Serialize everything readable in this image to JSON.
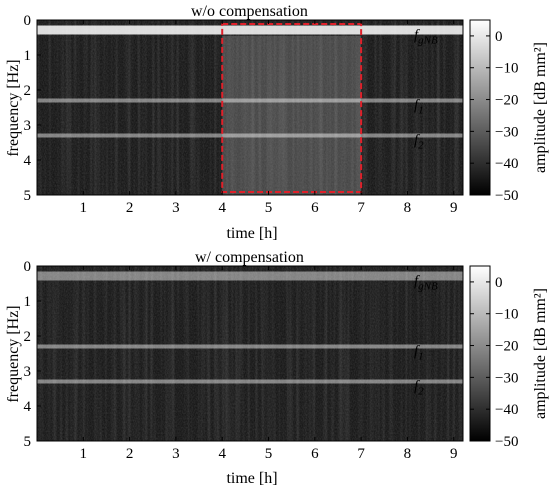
{
  "chart_data": [
    {
      "type": "heatmap",
      "title": "w/o compensation",
      "xlabel": "time [h]",
      "ylabel": "frequency [Hz]",
      "xlim": [
        0,
        9.2
      ],
      "ylim": [
        0,
        5
      ],
      "y_direction": "down",
      "x_ticks": [
        1,
        2,
        3,
        4,
        5,
        6,
        7,
        8,
        9
      ],
      "y_ticks": [
        0,
        1,
        2,
        3,
        4,
        5
      ],
      "grid": false,
      "bands": [
        {
          "label": "f_gNB",
          "frequency": 0.3
        },
        {
          "label": "f_1",
          "frequency": 2.3
        },
        {
          "label": "f_2",
          "frequency": 3.3
        }
      ],
      "highlight_box": {
        "x": [
          4,
          7
        ],
        "y": [
          0,
          5
        ],
        "color": "#e0202a",
        "style": "dashed"
      },
      "colorbar": {
        "label": "amplitude [dB mm²]",
        "range": [
          -50,
          5
        ],
        "ticks": [
          0,
          -10,
          -20,
          -30,
          -40,
          -50
        ]
      }
    },
    {
      "type": "heatmap",
      "title": "w/ compensation",
      "xlabel": "time [h]",
      "ylabel": "frequency [Hz]",
      "xlim": [
        0,
        9.2
      ],
      "ylim": [
        0,
        5
      ],
      "y_direction": "down",
      "x_ticks": [
        1,
        2,
        3,
        4,
        5,
        6,
        7,
        8,
        9
      ],
      "y_ticks": [
        0,
        1,
        2,
        3,
        4,
        5
      ],
      "grid": false,
      "bands": [
        {
          "label": "f_gNB",
          "frequency": 0.3
        },
        {
          "label": "f_1",
          "frequency": 2.3
        },
        {
          "label": "f_2",
          "frequency": 3.3
        }
      ],
      "colorbar": {
        "label": "amplitude [dB mm²]",
        "range": [
          -50,
          5
        ],
        "ticks": [
          0,
          -10,
          -20,
          -30,
          -40,
          -50
        ]
      }
    }
  ]
}
